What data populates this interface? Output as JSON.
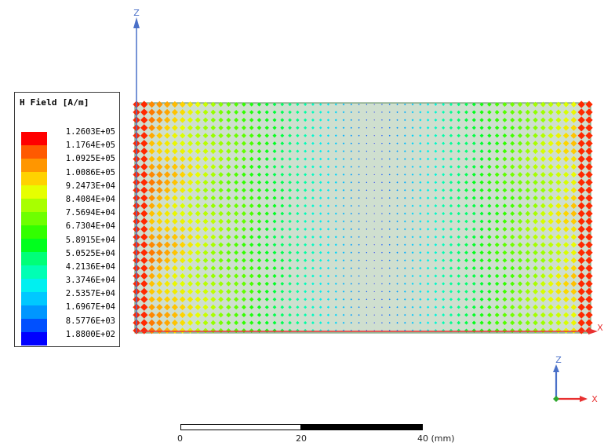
{
  "legend": {
    "title": "H Field [A/m]",
    "items": [
      {
        "label": "1.2603E+05",
        "color": "#ff0000"
      },
      {
        "label": "1.1764E+05",
        "color": "#ff5a00"
      },
      {
        "label": "1.0925E+05",
        "color": "#ff9600"
      },
      {
        "label": "1.0086E+05",
        "color": "#ffd200"
      },
      {
        "label": "9.2473E+04",
        "color": "#e6ff00"
      },
      {
        "label": "8.4084E+04",
        "color": "#a8ff00"
      },
      {
        "label": "7.5694E+04",
        "color": "#6eff00"
      },
      {
        "label": "6.7304E+04",
        "color": "#32ff00"
      },
      {
        "label": "5.8915E+04",
        "color": "#00ff1e"
      },
      {
        "label": "5.0525E+04",
        "color": "#00ff78"
      },
      {
        "label": "4.2136E+04",
        "color": "#00ffb4"
      },
      {
        "label": "3.3746E+04",
        "color": "#00f0f0"
      },
      {
        "label": "2.5357E+04",
        "color": "#00c8ff"
      },
      {
        "label": "1.6967E+04",
        "color": "#0096ff"
      },
      {
        "label": "8.5776E+03",
        "color": "#0050ff"
      },
      {
        "label": "1.8800E+02",
        "color": "#0000ff"
      }
    ]
  },
  "axes": {
    "main_z_label": "Z",
    "main_x_label": "X",
    "triad_z_label": "Z",
    "triad_x_label": "X"
  },
  "scale_bar": {
    "labels": [
      "0",
      "20",
      "40 (mm)"
    ]
  },
  "colors": {
    "region_fill": "#cfdfcf",
    "region_border": "#5a8a5a",
    "z_axis": "#4a70c8",
    "x_axis": "#e83030",
    "triad_y": "#2ea82e"
  }
}
